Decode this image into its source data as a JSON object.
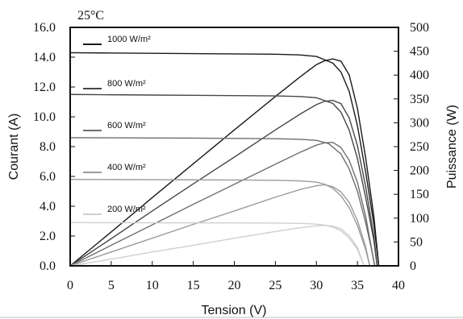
{
  "chart_data": {
    "type": "line",
    "annotation": "25°C",
    "xlabel": "Tension (V)",
    "ylabel_left": "Courant (A)",
    "ylabel_right": "Puissance (W)",
    "xlim": [
      0,
      40
    ],
    "ylim_left": [
      0,
      16
    ],
    "ylim_right": [
      0,
      500
    ],
    "x_ticks": [
      "0",
      "5",
      "10",
      "15",
      "20",
      "25",
      "30",
      "35",
      "40"
    ],
    "y_left_ticks": [
      "0.0",
      "2.0",
      "4.0",
      "6.0",
      "8.0",
      "10.0",
      "12.0",
      "14.0",
      "16.0"
    ],
    "y_right_ticks": [
      "0",
      "50",
      "100",
      "150",
      "200",
      "250",
      "300",
      "350",
      "400",
      "450",
      "500"
    ],
    "grid": false,
    "legend_position": "top-left",
    "series": [
      {
        "name": "1000 W/m²",
        "color": "#1a1a1a",
        "current_curve": [
          [
            0,
            14.3
          ],
          [
            5,
            14.28
          ],
          [
            10,
            14.26
          ],
          [
            15,
            14.24
          ],
          [
            20,
            14.22
          ],
          [
            25,
            14.2
          ],
          [
            28,
            14.15
          ],
          [
            30,
            14.05
          ],
          [
            32,
            13.6
          ],
          [
            33,
            13.0
          ],
          [
            34,
            11.7
          ],
          [
            35,
            9.4
          ],
          [
            36,
            6.3
          ],
          [
            37,
            2.8
          ],
          [
            37.6,
            0
          ]
        ],
        "power_curve": [
          [
            0,
            0
          ],
          [
            5,
            71
          ],
          [
            10,
            143
          ],
          [
            15,
            214
          ],
          [
            20,
            285
          ],
          [
            25,
            355
          ],
          [
            28,
            396
          ],
          [
            30,
            422
          ],
          [
            31,
            430
          ],
          [
            32,
            434
          ],
          [
            33,
            429
          ],
          [
            34,
            400
          ],
          [
            35,
            330
          ],
          [
            36,
            227
          ],
          [
            37,
            104
          ],
          [
            37.6,
            0
          ]
        ]
      },
      {
        "name": "800 W/m²",
        "color": "#474747",
        "current_curve": [
          [
            0,
            11.5
          ],
          [
            5,
            11.48
          ],
          [
            10,
            11.46
          ],
          [
            15,
            11.44
          ],
          [
            20,
            11.42
          ],
          [
            25,
            11.4
          ],
          [
            28,
            11.36
          ],
          [
            30,
            11.28
          ],
          [
            32,
            10.9
          ],
          [
            33,
            10.3
          ],
          [
            34,
            9.1
          ],
          [
            35,
            7.2
          ],
          [
            36,
            4.6
          ],
          [
            37,
            1.7
          ],
          [
            37.4,
            0
          ]
        ],
        "power_curve": [
          [
            0,
            0
          ],
          [
            5,
            57
          ],
          [
            10,
            115
          ],
          [
            15,
            172
          ],
          [
            20,
            228
          ],
          [
            25,
            285
          ],
          [
            28,
            318
          ],
          [
            30,
            338
          ],
          [
            31,
            345
          ],
          [
            32,
            347
          ],
          [
            33,
            340
          ],
          [
            34,
            310
          ],
          [
            35,
            252
          ],
          [
            36,
            166
          ],
          [
            37,
            62
          ],
          [
            37.4,
            0
          ]
        ]
      },
      {
        "name": "600 W/m²",
        "color": "#6e6e6e",
        "current_curve": [
          [
            0,
            8.6
          ],
          [
            5,
            8.59
          ],
          [
            10,
            8.58
          ],
          [
            15,
            8.57
          ],
          [
            20,
            8.55
          ],
          [
            25,
            8.53
          ],
          [
            28,
            8.49
          ],
          [
            30,
            8.42
          ],
          [
            31.5,
            8.2
          ],
          [
            33,
            7.5
          ],
          [
            34,
            6.5
          ],
          [
            35,
            5.0
          ],
          [
            36,
            2.9
          ],
          [
            36.8,
            0.9
          ],
          [
            37.1,
            0
          ]
        ],
        "power_curve": [
          [
            0,
            0
          ],
          [
            5,
            43
          ],
          [
            10,
            86
          ],
          [
            15,
            129
          ],
          [
            20,
            171
          ],
          [
            25,
            213
          ],
          [
            28,
            238
          ],
          [
            30,
            253
          ],
          [
            31,
            258
          ],
          [
            32,
            259
          ],
          [
            33,
            248
          ],
          [
            34,
            221
          ],
          [
            35,
            175
          ],
          [
            36,
            104
          ],
          [
            37.1,
            0
          ]
        ]
      },
      {
        "name": "400 W/m²",
        "color": "#9b9b9b",
        "current_curve": [
          [
            0,
            5.8
          ],
          [
            5,
            5.79
          ],
          [
            10,
            5.78
          ],
          [
            15,
            5.77
          ],
          [
            20,
            5.76
          ],
          [
            25,
            5.74
          ],
          [
            28,
            5.7
          ],
          [
            30,
            5.62
          ],
          [
            31,
            5.48
          ],
          [
            32,
            5.2
          ],
          [
            33,
            4.7
          ],
          [
            34,
            3.9
          ],
          [
            35,
            2.7
          ],
          [
            36,
            1.1
          ],
          [
            36.5,
            0
          ]
        ],
        "power_curve": [
          [
            0,
            0
          ],
          [
            5,
            29
          ],
          [
            10,
            58
          ],
          [
            15,
            87
          ],
          [
            20,
            115
          ],
          [
            25,
            144
          ],
          [
            28,
            160
          ],
          [
            30,
            168
          ],
          [
            31,
            170
          ],
          [
            32,
            166
          ],
          [
            33,
            155
          ],
          [
            34,
            133
          ],
          [
            35,
            95
          ],
          [
            36,
            40
          ],
          [
            36.5,
            0
          ]
        ]
      },
      {
        "name": "200 W/m²",
        "color": "#cfcfcf",
        "current_curve": [
          [
            0,
            2.9
          ],
          [
            5,
            2.895
          ],
          [
            10,
            2.89
          ],
          [
            15,
            2.885
          ],
          [
            20,
            2.88
          ],
          [
            25,
            2.87
          ],
          [
            28,
            2.85
          ],
          [
            30,
            2.8
          ],
          [
            31,
            2.73
          ],
          [
            32,
            2.6
          ],
          [
            33,
            2.35
          ],
          [
            34,
            1.85
          ],
          [
            35,
            1.1
          ],
          [
            35.8,
            0
          ]
        ],
        "power_curve": [
          [
            0,
            0
          ],
          [
            5,
            14
          ],
          [
            10,
            29
          ],
          [
            15,
            43
          ],
          [
            20,
            58
          ],
          [
            25,
            72
          ],
          [
            28,
            80
          ],
          [
            30,
            84
          ],
          [
            31,
            85
          ],
          [
            32,
            83
          ],
          [
            33,
            78
          ],
          [
            34,
            63
          ],
          [
            35,
            39
          ],
          [
            35.8,
            0
          ]
        ]
      }
    ]
  }
}
